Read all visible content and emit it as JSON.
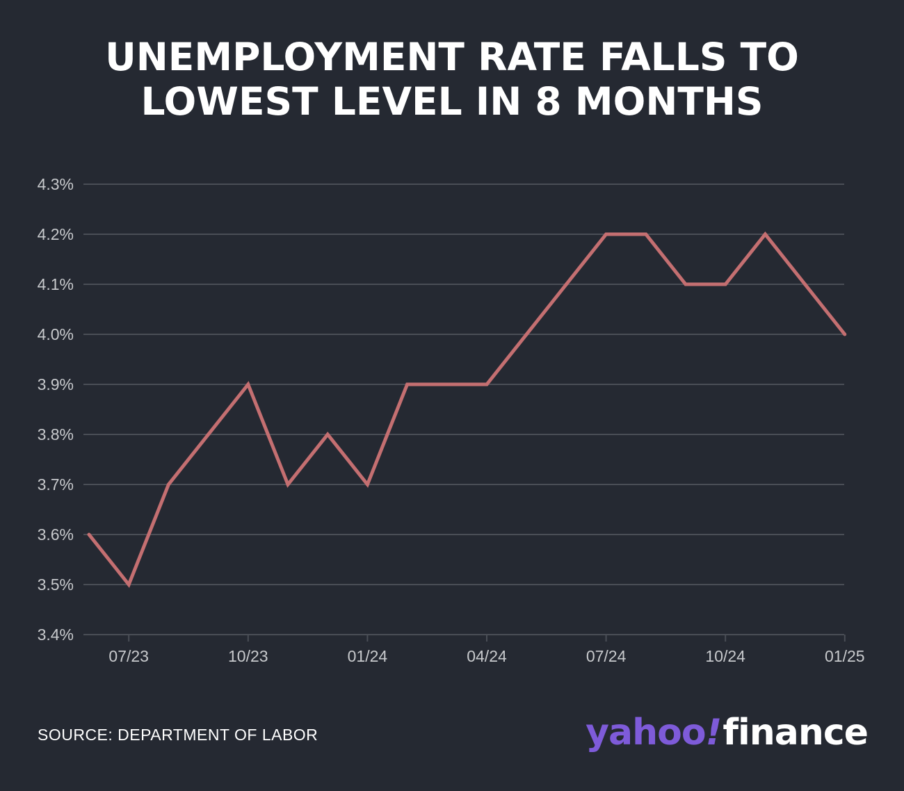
{
  "header": {
    "title_line1": "UNEMPLOYMENT RATE FALLS TO",
    "title_line2": "LOWEST LEVEL IN 8 MONTHS"
  },
  "footer": {
    "source": "SOURCE: DEPARTMENT OF LABOR",
    "logo_yahoo": "yahoo",
    "logo_bang": "!",
    "logo_finance": "finance"
  },
  "colors": {
    "background": "#252932",
    "line": "#c46f71",
    "grid": "#4a4e56",
    "tick_text": "#c8cacd",
    "logo_purple": "#7e5bd9"
  },
  "chart_data": {
    "type": "line",
    "title": "UNEMPLOYMENT RATE FALLS TO LOWEST LEVEL IN 8 MONTHS",
    "xlabel": "",
    "ylabel": "",
    "x": [
      "2023-06",
      "2023-07",
      "2023-08",
      "2023-09",
      "2023-10",
      "2023-11",
      "2023-12",
      "2024-01",
      "2024-02",
      "2024-03",
      "2024-04",
      "2024-05",
      "2024-06",
      "2024-07",
      "2024-08",
      "2024-09",
      "2024-10",
      "2024-11",
      "2024-12",
      "2025-01"
    ],
    "series": [
      {
        "values": [
          3.6,
          3.5,
          3.7,
          3.8,
          3.9,
          3.7,
          3.8,
          3.7,
          3.9,
          3.9,
          3.9,
          4.0,
          4.1,
          4.2,
          4.2,
          4.1,
          4.1,
          4.2,
          4.1,
          4.0
        ]
      }
    ],
    "ylim": [
      3.4,
      4.3
    ],
    "yticks": [
      "4.3%",
      "4.2%",
      "4.1%",
      "4.0%",
      "3.9%",
      "3.8%",
      "3.7%",
      "3.6%",
      "3.5%",
      "3.4%"
    ],
    "ytick_values": [
      4.3,
      4.2,
      4.1,
      4.0,
      3.9,
      3.8,
      3.7,
      3.6,
      3.5,
      3.4
    ],
    "xticks": [
      "07/23",
      "10/23",
      "01/24",
      "04/24",
      "07/24",
      "10/24",
      "01/25"
    ],
    "xtick_values": [
      "2023-07",
      "2023-10",
      "2024-01",
      "2024-04",
      "2024-07",
      "2024-10",
      "2025-01"
    ],
    "grid": true,
    "legend": "none"
  }
}
